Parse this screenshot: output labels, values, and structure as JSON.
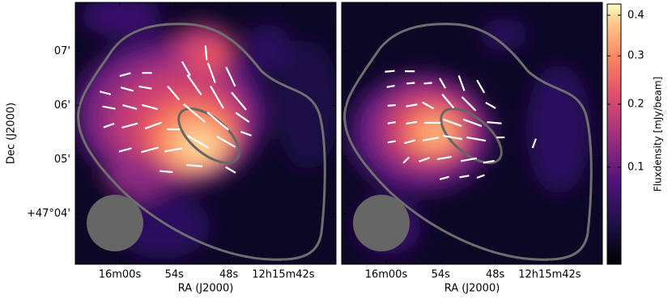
{
  "chart_data": {
    "type": "image",
    "xlabel": "RA (J2000)",
    "ylabel": "Dec (J2000)",
    "xlim": [
      64.9,
      36.2
    ],
    "ylim": [
      3.07,
      7.9
    ],
    "xticks": [
      {
        "value": 60,
        "label": "16m00s"
      },
      {
        "value": 54,
        "label": "54s"
      },
      {
        "value": 48,
        "label": "48s"
      },
      {
        "value": 42,
        "label": "12h15m42s"
      }
    ],
    "yticks": [
      {
        "value": 7,
        "label": "07'"
      },
      {
        "value": 6,
        "label": "06'"
      },
      {
        "value": 5,
        "label": "05'"
      },
      {
        "value": 4,
        "label": "+47°04'"
      }
    ],
    "vector_color": "#ffffff",
    "panels": [
      {
        "vectors": [
          [
            59.4,
            6.57,
            -15,
            0.21
          ],
          [
            57.0,
            6.6,
            0,
            0.18
          ],
          [
            61.6,
            6.23,
            15,
            0.21
          ],
          [
            59.2,
            6.3,
            15,
            0.24
          ],
          [
            57.2,
            6.33,
            10,
            0.24
          ],
          [
            52.7,
            6.68,
            60,
            0.3
          ],
          [
            50.5,
            6.97,
            85,
            0.27
          ],
          [
            49.9,
            6.6,
            70,
            0.39
          ],
          [
            47.8,
            6.53,
            65,
            0.39
          ],
          [
            61.2,
            5.96,
            10,
            0.24
          ],
          [
            58.9,
            5.97,
            15,
            0.27
          ],
          [
            56.7,
            5.97,
            15,
            0.3
          ],
          [
            54.1,
            6.23,
            50,
            0.33
          ],
          [
            51.8,
            6.38,
            55,
            0.45
          ],
          [
            49.3,
            6.15,
            60,
            0.48
          ],
          [
            46.9,
            6.08,
            50,
            0.42
          ],
          [
            61.2,
            5.63,
            -20,
            0.21
          ],
          [
            58.9,
            5.63,
            -15,
            0.3
          ],
          [
            56.3,
            5.63,
            -20,
            0.33
          ],
          [
            51.8,
            5.86,
            40,
            0.51
          ],
          [
            49.2,
            5.71,
            40,
            0.51
          ],
          [
            46.5,
            5.78,
            35,
            0.3
          ],
          [
            59.4,
            5.18,
            -15,
            0.24
          ],
          [
            56.7,
            5.18,
            -15,
            0.33
          ],
          [
            54.1,
            5.18,
            -10,
            0.33
          ],
          [
            51.4,
            5.33,
            30,
            0.45
          ],
          [
            48.3,
            5.33,
            30,
            0.39
          ],
          [
            46.1,
            5.48,
            20,
            0.21
          ],
          [
            54.9,
            4.78,
            5,
            0.24
          ],
          [
            51.8,
            4.89,
            5,
            0.3
          ],
          [
            47.8,
            4.81,
            30,
            0.21
          ],
          [
            54.1,
            5.56,
            0,
            0.24
          ]
        ]
      },
      {
        "vectors": [
          [
            59.6,
            6.63,
            -5,
            0.18
          ],
          [
            57.4,
            6.63,
            0,
            0.18
          ],
          [
            59.5,
            6.35,
            -10,
            0.15
          ],
          [
            57.3,
            6.41,
            -5,
            0.15
          ],
          [
            55.4,
            6.41,
            -5,
            0.15
          ],
          [
            53.8,
            6.41,
            60,
            0.21
          ],
          [
            51.7,
            6.41,
            70,
            0.3
          ],
          [
            49.6,
            6.35,
            60,
            0.27
          ],
          [
            59.4,
            6.0,
            -5,
            0.15
          ],
          [
            57.2,
            6.0,
            -10,
            0.21
          ],
          [
            55.4,
            6.0,
            30,
            0.24
          ],
          [
            53.2,
            6.08,
            50,
            0.33
          ],
          [
            50.9,
            6.03,
            45,
            0.36
          ],
          [
            48.5,
            6.0,
            30,
            0.21
          ],
          [
            59.4,
            5.68,
            -10,
            0.15
          ],
          [
            57.2,
            5.68,
            -10,
            0.21
          ],
          [
            54.9,
            5.68,
            0,
            0.3
          ],
          [
            52.7,
            5.68,
            20,
            0.36
          ],
          [
            50.5,
            5.68,
            20,
            0.36
          ],
          [
            48.1,
            5.68,
            5,
            0.27
          ],
          [
            59.4,
            5.33,
            -10,
            0.15
          ],
          [
            57.4,
            5.33,
            -15,
            0.21
          ],
          [
            55.1,
            5.38,
            -10,
            0.3
          ],
          [
            52.7,
            5.41,
            10,
            0.36
          ],
          [
            50.1,
            5.38,
            10,
            0.36
          ],
          [
            47.4,
            5.41,
            0,
            0.15
          ],
          [
            43.7,
            5.3,
            -70,
            0.18
          ],
          [
            57.8,
            4.99,
            -45,
            0.15
          ],
          [
            55.8,
            5.0,
            -20,
            0.21
          ],
          [
            53.6,
            5.03,
            -10,
            0.27
          ],
          [
            50.9,
            5.0,
            -10,
            0.3
          ],
          [
            48.7,
            4.96,
            -10,
            0.21
          ],
          [
            53.6,
            4.66,
            -15,
            0.18
          ],
          [
            51.4,
            4.69,
            -10,
            0.18
          ],
          [
            49.6,
            4.69,
            -20,
            0.15
          ]
        ]
      }
    ],
    "colorbar": {
      "label": "Fluxdensity [mJy/beam]",
      "scale": "sqrt",
      "lim": [
        0.013,
        0.43
      ],
      "ticks": [
        0.1,
        0.2,
        0.3,
        0.4
      ]
    }
  }
}
